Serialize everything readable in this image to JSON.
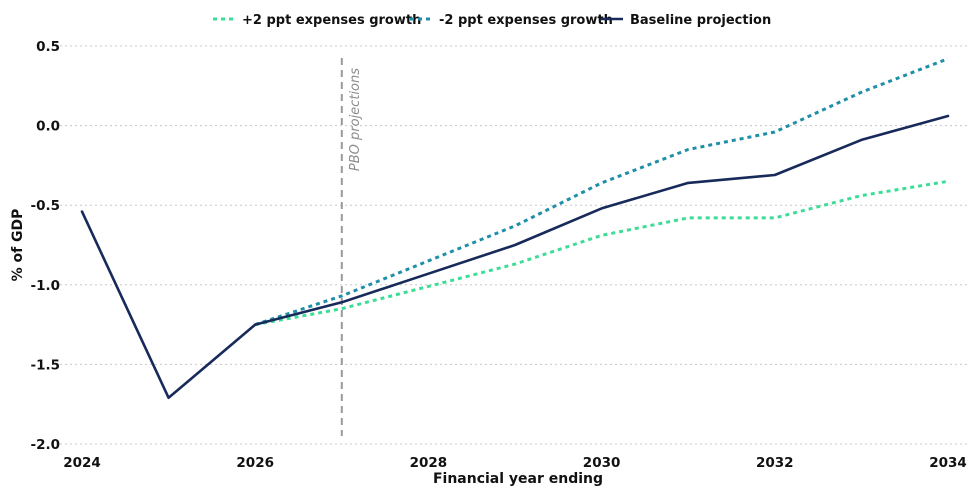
{
  "chart_data": {
    "type": "line",
    "title": "",
    "xlabel": "Financial year ending",
    "ylabel": "% of GDP",
    "x": [
      2024,
      2025,
      2026,
      2027,
      2028,
      2029,
      2030,
      2031,
      2032,
      2033,
      2034
    ],
    "xticks": [
      "2024",
      "2026",
      "2028",
      "2030",
      "2032",
      "2034"
    ],
    "yticks": [
      "0.5",
      "0.0",
      "-0.5",
      "-1.0",
      "-1.5",
      "-2.0"
    ],
    "xlim": [
      2024,
      2034
    ],
    "ylim": [
      -2.0,
      0.5
    ],
    "grid": "horizontal dotted",
    "legend_position": "top",
    "annotation": {
      "text": "PBO projections",
      "x": 2027
    },
    "series": [
      {
        "name": "+2 ppt expenses growth",
        "color": "#3ddc97",
        "style": "dashed",
        "x": [
          2026,
          2027,
          2028,
          2029,
          2030,
          2031,
          2032,
          2033,
          2034
        ],
        "values": [
          -1.25,
          -1.15,
          -1.01,
          -0.87,
          -0.69,
          -0.58,
          -0.58,
          -0.44,
          -0.35
        ]
      },
      {
        "name": "-2 ppt expenses growth",
        "color": "#1f8fa8",
        "style": "dashed",
        "x": [
          2026,
          2027,
          2028,
          2029,
          2030,
          2031,
          2032,
          2033,
          2034
        ],
        "values": [
          -1.25,
          -1.07,
          -0.85,
          -0.63,
          -0.36,
          -0.15,
          -0.04,
          0.21,
          0.42
        ]
      },
      {
        "name": "Baseline projection",
        "color": "#172a5a",
        "style": "solid",
        "x": [
          2024,
          2025,
          2026,
          2027,
          2028,
          2029,
          2030,
          2031,
          2032,
          2033,
          2034
        ],
        "values": [
          -0.54,
          -1.71,
          -1.25,
          -1.11,
          -0.93,
          -0.75,
          -0.52,
          -0.36,
          -0.31,
          -0.09,
          0.06
        ]
      }
    ]
  }
}
